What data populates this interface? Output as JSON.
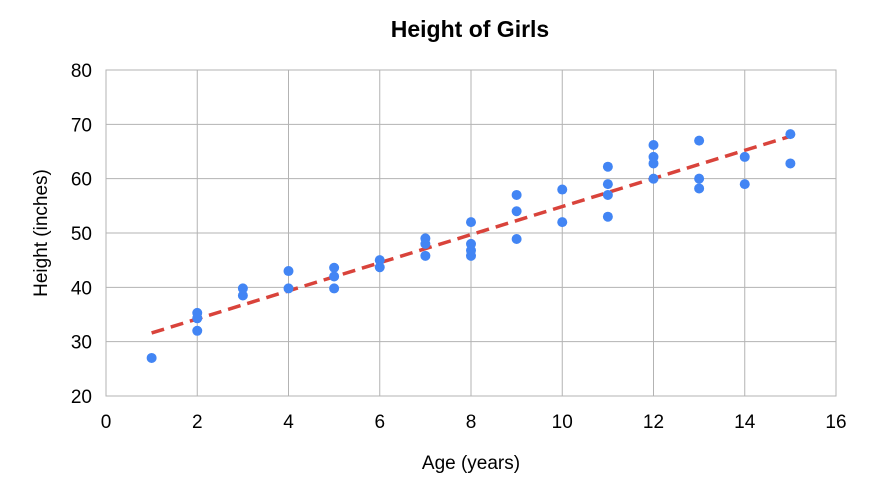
{
  "chart_data": {
    "type": "scatter",
    "title": "Height of Girls",
    "xlabel": "Age (years)",
    "ylabel": "Height (inches)",
    "xlim": [
      0,
      16
    ],
    "ylim": [
      20,
      80
    ],
    "x_ticks": [
      0,
      2,
      4,
      6,
      8,
      10,
      12,
      14,
      16
    ],
    "y_ticks": [
      20,
      30,
      40,
      50,
      60,
      70,
      80
    ],
    "grid": true,
    "series": [
      {
        "type": "scatter",
        "color": "#4285f4",
        "points": [
          [
            1,
            27
          ],
          [
            2,
            35.3
          ],
          [
            2,
            34.3
          ],
          [
            2,
            32
          ],
          [
            3,
            39.8
          ],
          [
            3,
            38.5
          ],
          [
            4,
            43
          ],
          [
            4,
            39.8
          ],
          [
            5,
            43.6
          ],
          [
            5,
            42
          ],
          [
            5,
            39.8
          ],
          [
            6,
            45
          ],
          [
            6,
            43.7
          ],
          [
            7,
            49
          ],
          [
            7,
            48
          ],
          [
            7,
            45.8
          ],
          [
            8,
            52
          ],
          [
            8,
            48
          ],
          [
            8,
            46.8
          ],
          [
            8,
            45.8
          ],
          [
            9,
            57
          ],
          [
            9,
            54
          ],
          [
            9,
            48.9
          ],
          [
            10,
            58
          ],
          [
            10,
            52
          ],
          [
            11,
            62.2
          ],
          [
            11,
            59
          ],
          [
            11,
            57
          ],
          [
            11,
            53
          ],
          [
            12,
            66.2
          ],
          [
            12,
            64
          ],
          [
            12,
            62.8
          ],
          [
            12,
            60
          ],
          [
            13,
            67
          ],
          [
            13,
            60
          ],
          [
            13,
            58.2
          ],
          [
            14,
            64
          ],
          [
            14,
            59
          ],
          [
            15,
            68.2
          ],
          [
            15,
            62.8
          ]
        ]
      },
      {
        "type": "trendline",
        "style": "dashed",
        "color": "#d9433b",
        "points": [
          [
            1,
            31.6
          ],
          [
            15,
            67.8
          ]
        ]
      }
    ]
  }
}
